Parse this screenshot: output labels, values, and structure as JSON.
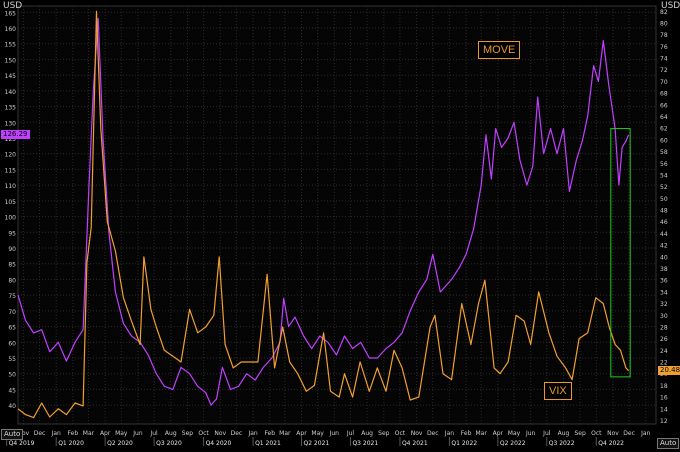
{
  "window": {
    "unit_left": "USD",
    "unit_right": "USD",
    "auto_left": "Auto",
    "auto_right": "Auto"
  },
  "colors": {
    "move": "#c040ff",
    "vix": "#f0a030",
    "box": "#22cc22",
    "label_border": "#e89a2a",
    "grid": "#2a2a2a",
    "background": "#000000"
  },
  "chart_data": {
    "type": "line",
    "title": "",
    "x_ticks": [
      "Nov",
      "Dec",
      "Jan",
      "Feb",
      "Mar",
      "Apr",
      "May",
      "Jun",
      "Jul",
      "Aug",
      "Sep",
      "Oct",
      "Nov",
      "Dec",
      "Jan",
      "Feb",
      "Mar",
      "Apr",
      "May",
      "Jun",
      "Jul",
      "Aug",
      "Sep",
      "Oct",
      "Nov",
      "Dec",
      "Jan",
      "Feb",
      "Mar",
      "Apr",
      "May",
      "Jun",
      "Jul",
      "Aug",
      "Sep",
      "Oct",
      "Nov",
      "Dec",
      "Jan"
    ],
    "x_ticks_dates": [
      "2019-11",
      "2019-12",
      "2020-01",
      "2020-02",
      "2020-03",
      "2020-04",
      "2020-05",
      "2020-06",
      "2020-07",
      "2020-08",
      "2020-09",
      "2020-10",
      "2020-11",
      "2020-12",
      "2021-01",
      "2021-02",
      "2021-03",
      "2021-04",
      "2021-05",
      "2021-06",
      "2021-07",
      "2021-08",
      "2021-09",
      "2021-10",
      "2021-11",
      "2021-12",
      "2022-01",
      "2022-02",
      "2022-03",
      "2022-04",
      "2022-05",
      "2022-06",
      "2022-07",
      "2022-08",
      "2022-09",
      "2022-10",
      "2022-11",
      "2022-12",
      "2023-01"
    ],
    "quarters": [
      {
        "label": "Q4 2019",
        "date": "2019-10-01"
      },
      {
        "label": "Q1 2020",
        "date": "2020-01-01"
      },
      {
        "label": "Q2 2020",
        "date": "2020-04-01"
      },
      {
        "label": "Q3 2020",
        "date": "2020-07-01"
      },
      {
        "label": "Q4 2020",
        "date": "2020-10-01"
      },
      {
        "label": "Q1 2021",
        "date": "2021-01-01"
      },
      {
        "label": "Q2 2021",
        "date": "2021-04-01"
      },
      {
        "label": "Q3 2021",
        "date": "2021-07-01"
      },
      {
        "label": "Q4 2021",
        "date": "2021-10-01"
      },
      {
        "label": "Q1 2022",
        "date": "2022-01-01"
      },
      {
        "label": "Q2 2022",
        "date": "2022-04-01"
      },
      {
        "label": "Q3 2022",
        "date": "2022-07-01"
      },
      {
        "label": "Q4 2022",
        "date": "2022-10-01"
      }
    ],
    "x_range": [
      "2019-10-22",
      "2023-01-20"
    ],
    "y_left": {
      "unit": "USD",
      "range": [
        34,
        167
      ],
      "ticks": [
        40,
        45,
        50,
        55,
        60,
        65,
        70,
        75,
        80,
        85,
        90,
        95,
        100,
        105,
        110,
        115,
        120,
        125,
        130,
        135,
        140,
        145,
        150,
        155,
        160,
        165
      ]
    },
    "y_right": {
      "unit": "USD",
      "range": [
        11.4,
        82.9
      ],
      "ticks": [
        12,
        14,
        16,
        18,
        20,
        22,
        24,
        26,
        28,
        30,
        32,
        34,
        36,
        38,
        40,
        42,
        44,
        46,
        48,
        50,
        52,
        54,
        56,
        58,
        60,
        62,
        64,
        66,
        68,
        70,
        72,
        74,
        76,
        78,
        80,
        82
      ]
    },
    "series": [
      {
        "name": "MOVE",
        "axis": "left",
        "last_value": "126.29",
        "points": [
          [
            "2019-10-22",
            75
          ],
          [
            "2019-11-05",
            67
          ],
          [
            "2019-11-20",
            63
          ],
          [
            "2019-12-05",
            64
          ],
          [
            "2019-12-20",
            57
          ],
          [
            "2020-01-05",
            60
          ],
          [
            "2020-01-20",
            54
          ],
          [
            "2020-02-05",
            60
          ],
          [
            "2020-02-20",
            64
          ],
          [
            "2020-03-02",
            110
          ],
          [
            "2020-03-10",
            140
          ],
          [
            "2020-03-19",
            163
          ],
          [
            "2020-03-28",
            125
          ],
          [
            "2020-04-08",
            95
          ],
          [
            "2020-04-20",
            76
          ],
          [
            "2020-05-05",
            66
          ],
          [
            "2020-05-20",
            62
          ],
          [
            "2020-06-05",
            60
          ],
          [
            "2020-06-20",
            56
          ],
          [
            "2020-07-05",
            50
          ],
          [
            "2020-07-20",
            46
          ],
          [
            "2020-08-05",
            45
          ],
          [
            "2020-08-20",
            52
          ],
          [
            "2020-09-05",
            50
          ],
          [
            "2020-09-20",
            46
          ],
          [
            "2020-10-05",
            44
          ],
          [
            "2020-10-15",
            40
          ],
          [
            "2020-10-25",
            42
          ],
          [
            "2020-11-05",
            52
          ],
          [
            "2020-11-20",
            45
          ],
          [
            "2020-12-05",
            46
          ],
          [
            "2020-12-20",
            50
          ],
          [
            "2021-01-05",
            48
          ],
          [
            "2021-01-20",
            52
          ],
          [
            "2021-02-05",
            55
          ],
          [
            "2021-02-20",
            60
          ],
          [
            "2021-02-27",
            74
          ],
          [
            "2021-03-08",
            65
          ],
          [
            "2021-03-20",
            68
          ],
          [
            "2021-04-05",
            62
          ],
          [
            "2021-04-20",
            58
          ],
          [
            "2021-05-05",
            62
          ],
          [
            "2021-05-20",
            60
          ],
          [
            "2021-06-05",
            56
          ],
          [
            "2021-06-20",
            62
          ],
          [
            "2021-07-05",
            58
          ],
          [
            "2021-07-20",
            60
          ],
          [
            "2021-08-05",
            55
          ],
          [
            "2021-08-20",
            55
          ],
          [
            "2021-09-05",
            58
          ],
          [
            "2021-09-20",
            60
          ],
          [
            "2021-10-05",
            63
          ],
          [
            "2021-10-20",
            70
          ],
          [
            "2021-11-05",
            76
          ],
          [
            "2021-11-20",
            80
          ],
          [
            "2021-12-01",
            88
          ],
          [
            "2021-12-15",
            76
          ],
          [
            "2022-01-05",
            80
          ],
          [
            "2022-01-20",
            84
          ],
          [
            "2022-02-01",
            88
          ],
          [
            "2022-02-15",
            96
          ],
          [
            "2022-03-01",
            110
          ],
          [
            "2022-03-10",
            126
          ],
          [
            "2022-03-20",
            112
          ],
          [
            "2022-03-28",
            128
          ],
          [
            "2022-04-08",
            122
          ],
          [
            "2022-04-20",
            125
          ],
          [
            "2022-05-01",
            130
          ],
          [
            "2022-05-12",
            118
          ],
          [
            "2022-05-25",
            110
          ],
          [
            "2022-06-05",
            116
          ],
          [
            "2022-06-14",
            138
          ],
          [
            "2022-06-25",
            120
          ],
          [
            "2022-07-08",
            128
          ],
          [
            "2022-07-20",
            120
          ],
          [
            "2022-08-01",
            128
          ],
          [
            "2022-08-12",
            108
          ],
          [
            "2022-08-25",
            118
          ],
          [
            "2022-09-05",
            124
          ],
          [
            "2022-09-15",
            132
          ],
          [
            "2022-09-26",
            148
          ],
          [
            "2022-10-05",
            143
          ],
          [
            "2022-10-14",
            156
          ],
          [
            "2022-10-24",
            142
          ],
          [
            "2022-11-05",
            128
          ],
          [
            "2022-11-12",
            110
          ],
          [
            "2022-11-18",
            122
          ],
          [
            "2022-11-25",
            124
          ],
          [
            "2022-11-30",
            126
          ]
        ]
      },
      {
        "name": "VIX",
        "axis": "right",
        "last_value": "20.48",
        "points": [
          [
            "2019-10-22",
            14
          ],
          [
            "2019-11-05",
            13
          ],
          [
            "2019-11-20",
            12.5
          ],
          [
            "2019-12-05",
            15
          ],
          [
            "2019-12-20",
            12.6
          ],
          [
            "2020-01-05",
            14
          ],
          [
            "2020-01-20",
            13
          ],
          [
            "2020-02-05",
            15
          ],
          [
            "2020-02-20",
            14.5
          ],
          [
            "2020-02-27",
            39
          ],
          [
            "2020-03-06",
            45
          ],
          [
            "2020-03-16",
            82
          ],
          [
            "2020-03-24",
            62
          ],
          [
            "2020-04-05",
            46
          ],
          [
            "2020-04-20",
            41
          ],
          [
            "2020-05-05",
            33
          ],
          [
            "2020-05-20",
            29
          ],
          [
            "2020-06-05",
            25
          ],
          [
            "2020-06-12",
            40
          ],
          [
            "2020-06-25",
            31
          ],
          [
            "2020-07-05",
            28
          ],
          [
            "2020-07-20",
            24
          ],
          [
            "2020-08-05",
            23
          ],
          [
            "2020-08-20",
            22
          ],
          [
            "2020-09-05",
            31
          ],
          [
            "2020-09-20",
            27
          ],
          [
            "2020-10-05",
            28
          ],
          [
            "2020-10-20",
            30
          ],
          [
            "2020-10-30",
            40
          ],
          [
            "2020-11-10",
            25
          ],
          [
            "2020-11-25",
            21
          ],
          [
            "2020-12-10",
            22
          ],
          [
            "2020-12-25",
            22
          ],
          [
            "2021-01-10",
            22
          ],
          [
            "2021-01-27",
            37
          ],
          [
            "2021-02-10",
            21
          ],
          [
            "2021-02-25",
            28
          ],
          [
            "2021-03-10",
            22
          ],
          [
            "2021-03-25",
            20
          ],
          [
            "2021-04-10",
            17
          ],
          [
            "2021-04-25",
            18
          ],
          [
            "2021-05-12",
            27
          ],
          [
            "2021-05-25",
            17
          ],
          [
            "2021-06-10",
            16
          ],
          [
            "2021-06-20",
            20
          ],
          [
            "2021-07-05",
            16
          ],
          [
            "2021-07-19",
            22
          ],
          [
            "2021-08-05",
            17
          ],
          [
            "2021-08-20",
            21
          ],
          [
            "2021-09-05",
            17
          ],
          [
            "2021-09-20",
            24
          ],
          [
            "2021-10-05",
            21
          ],
          [
            "2021-10-20",
            15.5
          ],
          [
            "2021-11-05",
            16
          ],
          [
            "2021-11-26",
            28
          ],
          [
            "2021-12-05",
            30
          ],
          [
            "2021-12-20",
            20
          ],
          [
            "2022-01-05",
            19
          ],
          [
            "2022-01-24",
            32
          ],
          [
            "2022-02-10",
            25
          ],
          [
            "2022-02-24",
            32
          ],
          [
            "2022-03-08",
            36
          ],
          [
            "2022-03-25",
            21
          ],
          [
            "2022-04-05",
            20
          ],
          [
            "2022-04-20",
            22
          ],
          [
            "2022-05-05",
            30
          ],
          [
            "2022-05-20",
            29
          ],
          [
            "2022-06-01",
            25
          ],
          [
            "2022-06-16",
            34
          ],
          [
            "2022-07-05",
            27
          ],
          [
            "2022-07-20",
            23
          ],
          [
            "2022-08-05",
            21
          ],
          [
            "2022-08-17",
            19
          ],
          [
            "2022-08-30",
            26
          ],
          [
            "2022-09-15",
            27
          ],
          [
            "2022-09-30",
            33
          ],
          [
            "2022-10-14",
            32
          ],
          [
            "2022-10-25",
            28
          ],
          [
            "2022-11-05",
            25
          ],
          [
            "2022-11-15",
            24
          ],
          [
            "2022-11-25",
            21
          ],
          [
            "2022-11-30",
            20.5
          ]
        ]
      }
    ],
    "annotations": [
      "MOVE",
      "VIX"
    ],
    "highlight_box": {
      "x": [
        "2022-10-28",
        "2022-12-03"
      ],
      "y_left": [
        49,
        128
      ]
    },
    "grid": true,
    "legend": "none"
  }
}
